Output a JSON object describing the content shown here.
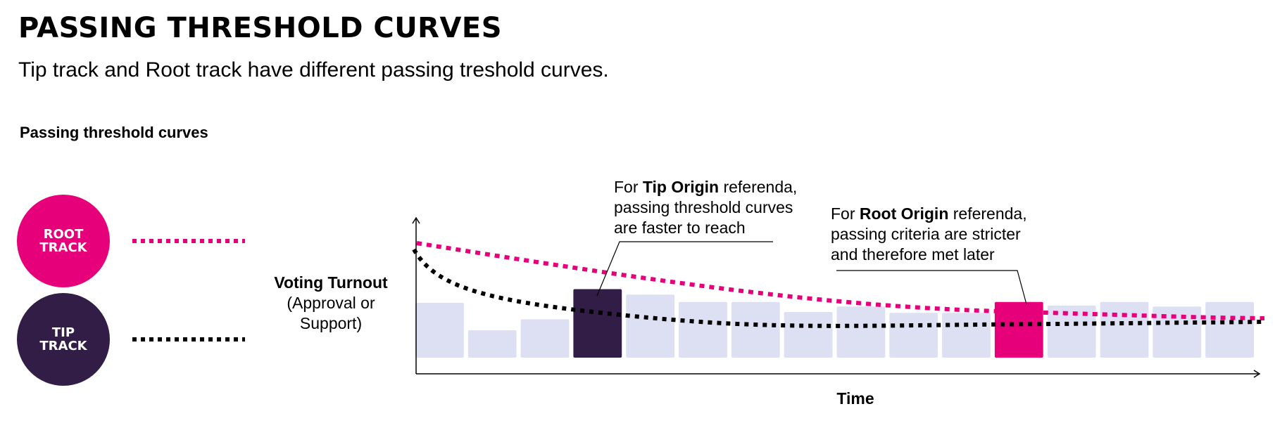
{
  "title": "PASSING THRESHOLD CURVES",
  "subtitle": "Tip track and Root track have different passing treshold curves.",
  "section_label": "Passing threshold curves",
  "legend": {
    "root": {
      "label_line1": "ROOT",
      "label_line2": "TRACK",
      "color": "#E6007A"
    },
    "tip": {
      "label_line1": "TIP",
      "label_line2": "TRACK",
      "color": "#321D47"
    }
  },
  "axes": {
    "y_label_bold": "Voting Turnout",
    "y_label_line2": "(Approval or",
    "y_label_line3": "Support)",
    "x_label": "Time"
  },
  "annotations": {
    "tip": {
      "prefix": "For ",
      "bold": "Tip Origin",
      "suffix": " referenda,",
      "line2": "passing threshold curves",
      "line3": "are faster to reach"
    },
    "root": {
      "prefix": "For ",
      "bold": "Root Origin",
      "suffix": " referenda,",
      "line2": "passing criteria are stricter",
      "line3": "and therefore met later"
    }
  },
  "colors": {
    "bar": "#DCE0F2",
    "tip_highlight": "#321D47",
    "root_highlight": "#E6007A"
  },
  "bars": [
    {
      "level": 0.6,
      "highlight": "none"
    },
    {
      "level": 0.3,
      "highlight": "none"
    },
    {
      "level": 0.42,
      "highlight": "none"
    },
    {
      "level": 0.75,
      "highlight": "tip"
    },
    {
      "level": 0.69,
      "highlight": "none"
    },
    {
      "level": 0.61,
      "highlight": "none"
    },
    {
      "level": 0.61,
      "highlight": "none"
    },
    {
      "level": 0.5,
      "highlight": "none"
    },
    {
      "level": 0.56,
      "highlight": "none"
    },
    {
      "level": 0.49,
      "highlight": "none"
    },
    {
      "level": 0.49,
      "highlight": "none"
    },
    {
      "level": 0.61,
      "highlight": "root"
    },
    {
      "level": 0.57,
      "highlight": "none"
    },
    {
      "level": 0.61,
      "highlight": "none"
    },
    {
      "level": 0.56,
      "highlight": "none"
    },
    {
      "level": 0.61,
      "highlight": "none"
    }
  ]
}
